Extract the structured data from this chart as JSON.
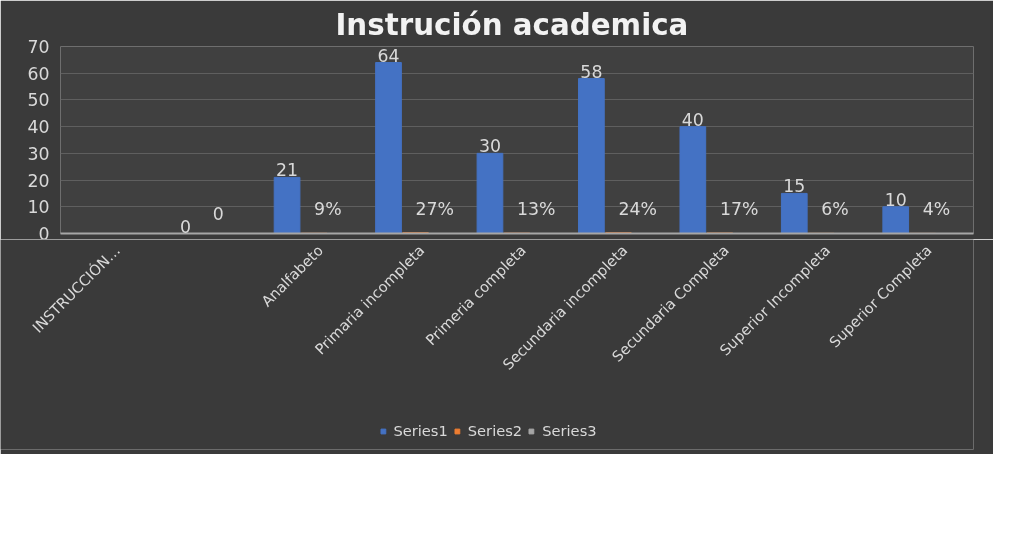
{
  "chart_data": {
    "type": "bar",
    "title": "Instrución  academica",
    "categories": [
      "INSTRUCCIÓN…",
      null,
      "Analfabeto",
      "Primaria incompleta",
      "Primeria completa",
      "Secundaria incompleta",
      "Secundaria Completa",
      "Superior Incompleta",
      "Superior Completa"
    ],
    "series": [
      {
        "name": "Series1",
        "color": "#4472c4",
        "values": [
          null,
          0,
          21,
          64,
          30,
          58,
          40,
          15,
          10
        ],
        "value_labels": [
          null,
          "0",
          "21",
          "64",
          "30",
          "58",
          "40",
          "15",
          "10"
        ]
      },
      {
        "name": "Series2",
        "color": "#ed7d31",
        "values": [
          null,
          0,
          0.09,
          0.27,
          0.13,
          0.24,
          0.17,
          0.06,
          0.04
        ],
        "value_labels": [
          null,
          "0",
          "9%",
          "27%",
          "13%",
          "24%",
          "17%",
          "6%",
          "4%"
        ]
      },
      {
        "name": "Series3",
        "color": "#a5a5a5",
        "values": [
          null,
          null,
          null,
          null,
          null,
          null,
          null,
          null,
          null
        ]
      }
    ],
    "ylim": [
      0,
      70
    ],
    "yticks": [
      0,
      10,
      20,
      30,
      40,
      50,
      60,
      70
    ],
    "grid": "y",
    "legend": "bottom"
  }
}
